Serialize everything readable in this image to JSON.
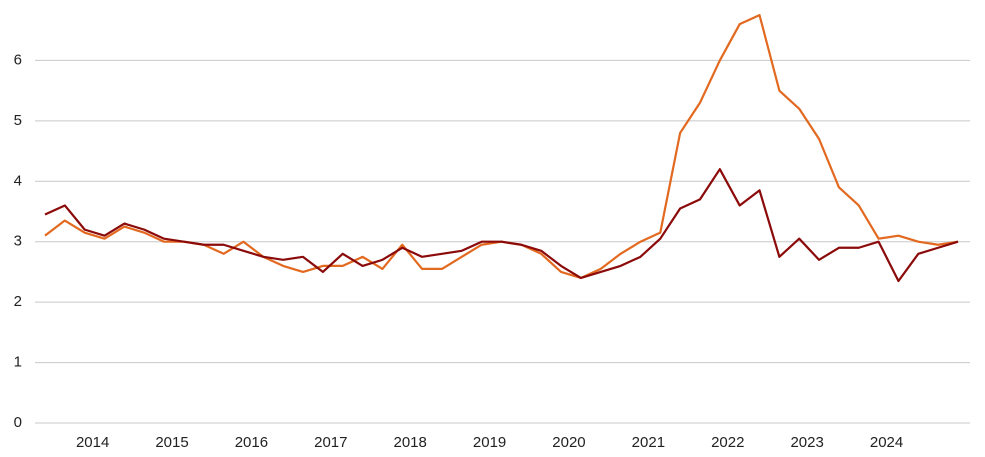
{
  "chart_data": {
    "type": "line",
    "x": [
      2013.4,
      2013.65,
      2013.9,
      2014.15,
      2014.4,
      2014.65,
      2014.9,
      2015.15,
      2015.4,
      2015.65,
      2015.9,
      2016.15,
      2016.4,
      2016.65,
      2016.9,
      2017.15,
      2017.4,
      2017.65,
      2017.9,
      2018.15,
      2018.4,
      2018.65,
      2018.9,
      2019.15,
      2019.4,
      2019.65,
      2019.9,
      2020.15,
      2020.4,
      2020.65,
      2020.9,
      2021.15,
      2021.4,
      2021.65,
      2021.9,
      2022.15,
      2022.4,
      2022.65,
      2022.9,
      2023.15,
      2023.4,
      2023.65,
      2023.9,
      2024.15,
      2024.4,
      2024.65,
      2024.9
    ],
    "series": [
      {
        "color": "#e2691f",
        "values": [
          3.1,
          3.35,
          3.15,
          3.05,
          3.25,
          3.15,
          3.0,
          3.0,
          2.95,
          2.8,
          3.0,
          2.75,
          2.6,
          2.5,
          2.6,
          2.6,
          2.75,
          2.55,
          2.95,
          2.55,
          2.55,
          2.75,
          2.95,
          3.0,
          2.95,
          2.8,
          2.5,
          2.4,
          2.55,
          2.8,
          3.0,
          3.15,
          4.8,
          5.3,
          6.0,
          6.6,
          6.75,
          5.5,
          5.2,
          4.7,
          3.9,
          3.6,
          3.05,
          3.1,
          3.0,
          2.95,
          3.0
        ]
      },
      {
        "color": "#8b0a0a",
        "values": [
          3.45,
          3.6,
          3.2,
          3.1,
          3.3,
          3.2,
          3.05,
          3.0,
          2.95,
          2.95,
          2.85,
          2.75,
          2.7,
          2.75,
          2.5,
          2.8,
          2.6,
          2.7,
          2.9,
          2.75,
          2.8,
          2.85,
          3.0,
          3.0,
          2.95,
          2.85,
          2.6,
          2.4,
          2.5,
          2.6,
          2.75,
          3.05,
          3.55,
          3.7,
          4.2,
          3.6,
          3.85,
          2.75,
          3.05,
          2.7,
          2.9,
          2.9,
          3.0,
          2.35,
          2.8,
          2.9,
          3.0
        ]
      }
    ],
    "xlim": [
      2013.4,
      2024.9
    ],
    "xticks": [
      2014,
      2015,
      2016,
      2017,
      2018,
      2019,
      2020,
      2021,
      2022,
      2023,
      2024
    ],
    "ylim": [
      0,
      7
    ],
    "yticks": [
      0,
      1,
      2,
      3,
      4,
      5,
      6
    ],
    "grid": true
  }
}
